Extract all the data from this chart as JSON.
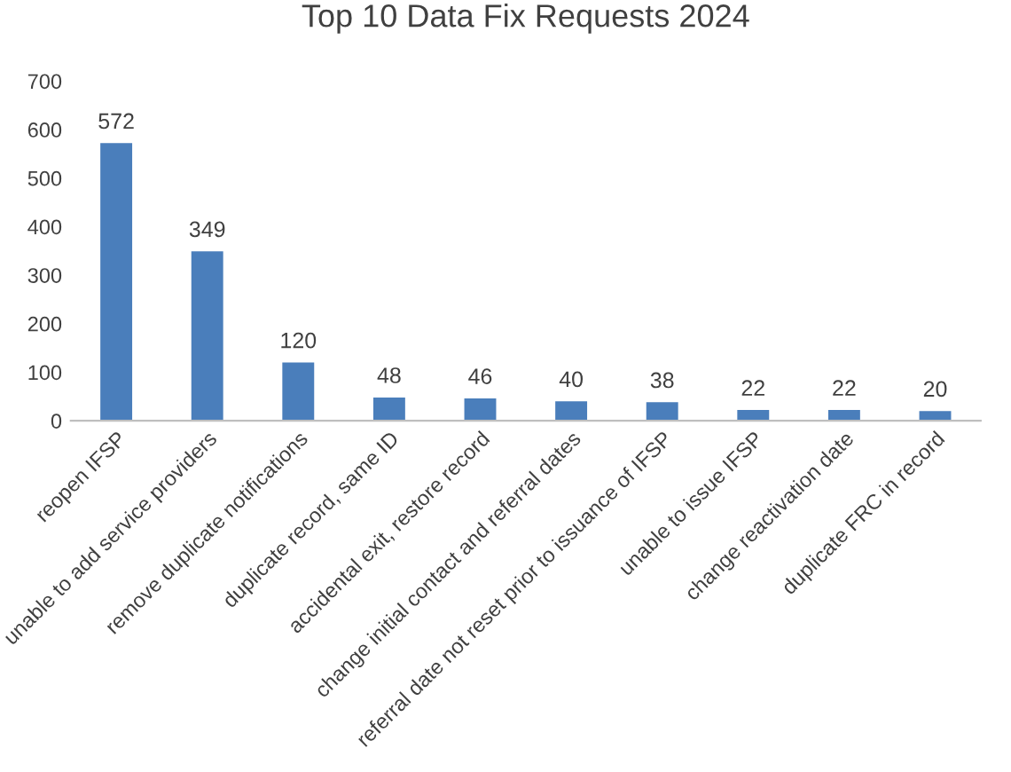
{
  "chart_data": {
    "type": "bar",
    "title": "Top 10 Data Fix Requests 2024",
    "categories": [
      "reopen IFSP",
      "unable to add service providers",
      "remove duplicate notifications",
      "duplicate record, same ID",
      "accidental exit, restore record",
      "change initial contact and referral dates",
      "referral date not reset prior to issuance of IFSP",
      "unable to issue IFSP",
      "change reactivation date",
      "duplicate FRC in record"
    ],
    "values": [
      572,
      349,
      120,
      48,
      46,
      40,
      38,
      22,
      22,
      20
    ],
    "color": "#4a7ebb",
    "data_labels": true,
    "grid": false,
    "ylim": [
      0,
      700
    ],
    "yticks": [
      0,
      100,
      200,
      300,
      400,
      500,
      600,
      700
    ]
  }
}
